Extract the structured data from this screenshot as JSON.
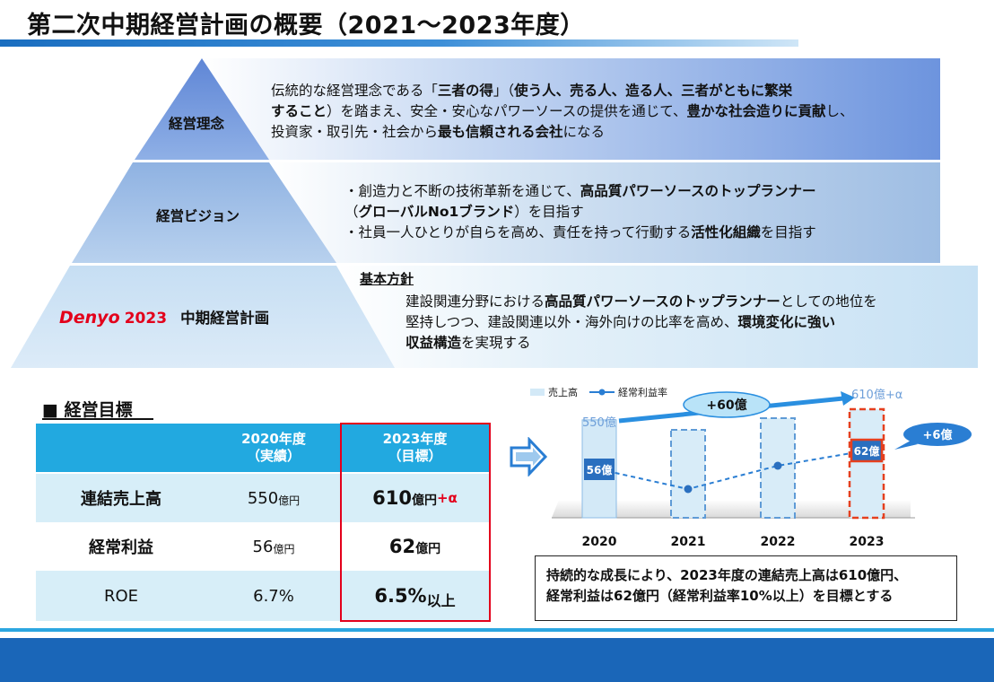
{
  "title": "第二次中期経営計画の概要（2021～2023年度）",
  "pyramid": {
    "tier1_label": "経営理念",
    "tier1_lines": [
      "伝統的な経営理念である「<b>三者の得</b>」（<b>使う人、売る人、造る人、三者がともに繁栄</b>",
      "<b>すること</b>）を踏まえ、安全・安心なパワーソースの提供を通じて、<b>豊かな社会造りに貢献</b>し、",
      "投資家・取引先・社会から<b>最も信頼される会社</b>になる"
    ],
    "tier2_label": "経営ビジョン",
    "tier2_lines": [
      "・創造力と不断の技術革新を通じて、<b>高品質パワーソースのトップランナー</b>",
      "（<b>グローバルNo1ブランド</b>）を目指す",
      "・社員一人ひとりが自らを高め、責任を持って行動する<b>活性化組織</b>を目指す"
    ],
    "tier3_logo": "Denyo",
    "tier3_year": "2023",
    "tier3_label": "中期経営計画",
    "tier3_heading": "基本方針",
    "tier3_lines": [
      "建設関連分野における<b>高品質パワーソースのトップランナー</b>としての地位を",
      "堅持しつつ、建設関連以外・海外向けの比率を高め、<b>環境変化に強い</b>",
      "<b>収益構造</b>を実現する"
    ]
  },
  "objectives": {
    "title": "■ 経営目標",
    "header": {
      "col2_line1": "2020年度",
      "col2_line2": "（実績）",
      "col3_line1": "2023年度",
      "col3_line2": "（目標）"
    },
    "rows": [
      {
        "label": "連結売上高",
        "v2020": "550",
        "u2020": "億円",
        "v2023": "610",
        "u2023": "億円",
        "extra": "+α"
      },
      {
        "label": "経常利益",
        "v2020": "56",
        "u2020": "億円",
        "v2023": "62",
        "u2023": "億円",
        "extra": ""
      },
      {
        "label": "ROE",
        "v2020": "6.7%",
        "u2020": "",
        "v2023": "6.5%",
        "u2023": "以上",
        "extra": ""
      }
    ]
  },
  "chart_data": {
    "type": "bar",
    "categories": [
      "2020",
      "2021",
      "2022",
      "2023"
    ],
    "series": [
      {
        "name": "売上高",
        "values": [
          550,
          null,
          null,
          610
        ]
      },
      {
        "name": "経常利益率",
        "values": [
          56,
          null,
          null,
          62
        ]
      }
    ],
    "bar_labels": [
      "550億",
      "610億+α"
    ],
    "point_labels": [
      "56億",
      "62億"
    ],
    "callouts": [
      "+60億",
      "+6億"
    ],
    "legend": [
      "売上高",
      "経常利益率"
    ],
    "legend_position": "top-left"
  },
  "note": {
    "line1": "持続的な成長により、2023年度の連結売上高は610億円、",
    "line2": "経常利益は62億円（経常利益率10%以上）を目標とする"
  },
  "colors": {
    "accent": "#1a66b8",
    "header_cyan": "#22a9e0",
    "row_tint": "#d7eef8",
    "target_red": "#e3001b"
  }
}
